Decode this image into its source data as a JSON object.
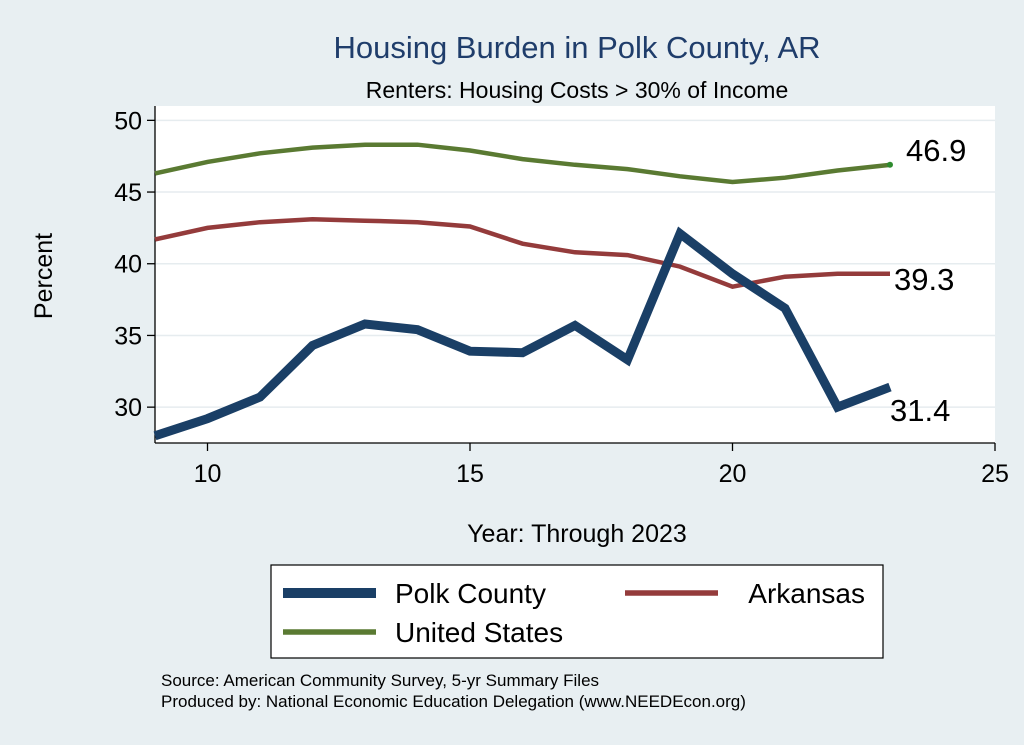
{
  "chart_data": {
    "type": "line",
    "title": "Housing Burden in Polk County, AR",
    "subtitle": "Renters: Housing Costs > 30% of Income",
    "xlabel": "Year: Through 2023",
    "ylabel": "Percent",
    "xlim": [
      9,
      25
    ],
    "ylim": [
      27.5,
      51
    ],
    "xticks": [
      "10",
      "15",
      "20",
      "25"
    ],
    "yticks": [
      "30",
      "35",
      "40",
      "45",
      "50"
    ],
    "grid": true,
    "legend_position": "bottom",
    "x": [
      9,
      10,
      11,
      12,
      13,
      14,
      15,
      16,
      17,
      18,
      19,
      20,
      21,
      22,
      23
    ],
    "series": [
      {
        "name": "Polk County",
        "color": "#1a3f66",
        "values": [
          28.0,
          29.2,
          30.7,
          34.3,
          35.8,
          35.4,
          33.9,
          33.8,
          35.7,
          33.3,
          42.1,
          39.3,
          36.9,
          30.0,
          31.4
        ],
        "end_label": "31.4"
      },
      {
        "name": "Arkansas",
        "color": "#943b3b",
        "values": [
          41.7,
          42.5,
          42.9,
          43.1,
          43.0,
          42.9,
          42.6,
          41.4,
          40.8,
          40.6,
          39.8,
          38.4,
          39.1,
          39.3,
          39.3
        ],
        "end_label": "39.3"
      },
      {
        "name": "United States",
        "color": "#5a7a32",
        "values": [
          46.3,
          47.1,
          47.7,
          48.1,
          48.3,
          48.3,
          47.9,
          47.3,
          46.9,
          46.6,
          46.1,
          45.7,
          46.0,
          46.5,
          46.9
        ],
        "end_label": "46.9"
      }
    ],
    "notes": [
      "Source: American Community Survey, 5-yr Summary Files",
      "Produced by: National Economic Education Delegation (www.NEEDEcon.org)"
    ]
  }
}
